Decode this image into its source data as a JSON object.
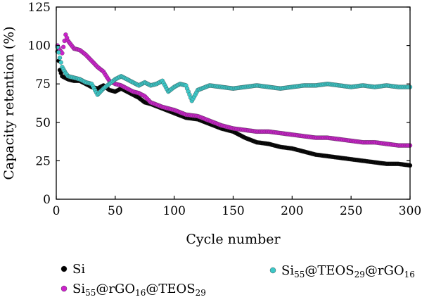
{
  "chart_data": {
    "type": "scatter",
    "xlabel": "Cycle number",
    "ylabel": "Capacity retention (%)",
    "xlim": [
      0,
      300
    ],
    "ylim": [
      0,
      125
    ],
    "x_ticks": [
      0,
      50,
      100,
      150,
      200,
      250,
      300
    ],
    "y_ticks": [
      0,
      25,
      50,
      75,
      100,
      125
    ],
    "grid": false,
    "legend_position": "bottom",
    "series": [
      {
        "name": "Si",
        "label_parts": [
          [
            "Si",
            ""
          ]
        ],
        "color": "#000000",
        "points": [
          [
            1,
            96
          ],
          [
            3,
            84
          ],
          [
            5,
            80
          ],
          [
            10,
            78
          ],
          [
            15,
            77
          ],
          [
            20,
            77
          ],
          [
            25,
            75
          ],
          [
            30,
            73
          ],
          [
            35,
            72
          ],
          [
            40,
            74
          ],
          [
            45,
            71
          ],
          [
            50,
            70
          ],
          [
            55,
            72
          ],
          [
            60,
            70
          ],
          [
            65,
            68
          ],
          [
            70,
            66
          ],
          [
            75,
            63
          ],
          [
            80,
            62
          ],
          [
            90,
            59
          ],
          [
            100,
            56
          ],
          [
            110,
            53
          ],
          [
            120,
            52
          ],
          [
            130,
            49
          ],
          [
            140,
            46
          ],
          [
            150,
            44
          ],
          [
            160,
            40
          ],
          [
            170,
            37
          ],
          [
            180,
            36
          ],
          [
            190,
            34
          ],
          [
            200,
            33
          ],
          [
            210,
            31
          ],
          [
            220,
            29
          ],
          [
            230,
            28
          ],
          [
            240,
            27
          ],
          [
            250,
            26
          ],
          [
            260,
            25
          ],
          [
            270,
            24
          ],
          [
            280,
            23
          ],
          [
            290,
            23
          ],
          [
            300,
            22
          ]
        ]
      },
      {
        "name": "Si55@rGO16@TEOS29",
        "label_parts": [
          [
            "Si",
            ""
          ],
          [
            "55",
            "sub"
          ],
          [
            "@rGO",
            ""
          ],
          [
            "16",
            "sub"
          ],
          [
            "@TEOS",
            ""
          ],
          [
            "29",
            "sub"
          ]
        ],
        "color": "#cc22cc",
        "points": [
          [
            1,
            100
          ],
          [
            3,
            97
          ],
          [
            5,
            95
          ],
          [
            8,
            107
          ],
          [
            10,
            103
          ],
          [
            15,
            98
          ],
          [
            20,
            97
          ],
          [
            25,
            94
          ],
          [
            30,
            90
          ],
          [
            35,
            86
          ],
          [
            40,
            83
          ],
          [
            45,
            77
          ],
          [
            50,
            75
          ],
          [
            55,
            74
          ],
          [
            60,
            72
          ],
          [
            65,
            70
          ],
          [
            70,
            69
          ],
          [
            75,
            67
          ],
          [
            80,
            63
          ],
          [
            90,
            60
          ],
          [
            100,
            58
          ],
          [
            110,
            55
          ],
          [
            120,
            54
          ],
          [
            130,
            51
          ],
          [
            140,
            48
          ],
          [
            150,
            46
          ],
          [
            160,
            45
          ],
          [
            170,
            44
          ],
          [
            180,
            44
          ],
          [
            190,
            43
          ],
          [
            200,
            42
          ],
          [
            210,
            41
          ],
          [
            220,
            40
          ],
          [
            230,
            40
          ],
          [
            240,
            39
          ],
          [
            250,
            38
          ],
          [
            260,
            37
          ],
          [
            270,
            37
          ],
          [
            280,
            36
          ],
          [
            290,
            35
          ],
          [
            300,
            35
          ]
        ]
      },
      {
        "name": "Si55@TEOS29@rGO16",
        "label_parts": [
          [
            "Si",
            ""
          ],
          [
            "55",
            "sub"
          ],
          [
            "@TEOS",
            ""
          ],
          [
            "29",
            "sub"
          ],
          [
            "@rGO",
            ""
          ],
          [
            "16",
            "sub"
          ]
        ],
        "color": "#3cc8c8",
        "points": [
          [
            1,
            99
          ],
          [
            3,
            92
          ],
          [
            5,
            86
          ],
          [
            8,
            82
          ],
          [
            10,
            80
          ],
          [
            15,
            79
          ],
          [
            20,
            78
          ],
          [
            25,
            76
          ],
          [
            30,
            75
          ],
          [
            35,
            68
          ],
          [
            40,
            72
          ],
          [
            45,
            75
          ],
          [
            50,
            78
          ],
          [
            55,
            80
          ],
          [
            60,
            78
          ],
          [
            65,
            76
          ],
          [
            70,
            74
          ],
          [
            75,
            76
          ],
          [
            80,
            74
          ],
          [
            85,
            75
          ],
          [
            90,
            77
          ],
          [
            95,
            70
          ],
          [
            100,
            73
          ],
          [
            105,
            75
          ],
          [
            110,
            74
          ],
          [
            115,
            64
          ],
          [
            120,
            71
          ],
          [
            130,
            74
          ],
          [
            140,
            73
          ],
          [
            150,
            72
          ],
          [
            160,
            73
          ],
          [
            170,
            74
          ],
          [
            180,
            73
          ],
          [
            190,
            72
          ],
          [
            200,
            73
          ],
          [
            210,
            74
          ],
          [
            220,
            74
          ],
          [
            230,
            75
          ],
          [
            240,
            74
          ],
          [
            250,
            73
          ],
          [
            260,
            74
          ],
          [
            270,
            73
          ],
          [
            280,
            74
          ],
          [
            290,
            73
          ],
          [
            300,
            73
          ]
        ]
      }
    ]
  }
}
